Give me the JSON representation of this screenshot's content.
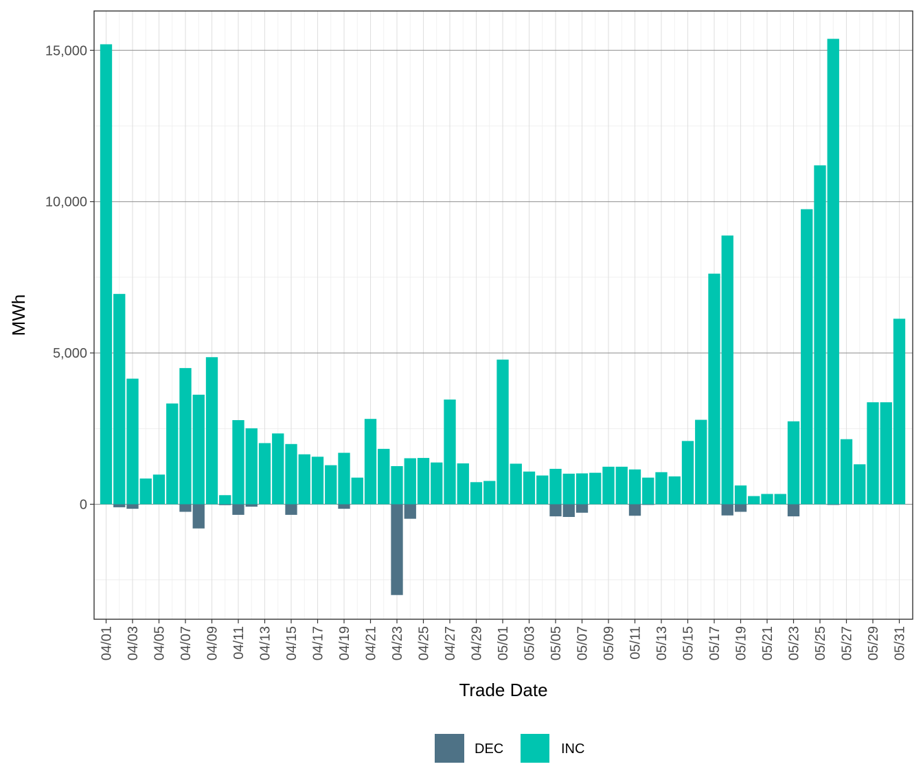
{
  "chart_data": {
    "type": "bar",
    "xlabel": "Trade Date",
    "ylabel": "MWh",
    "ylim": [
      -3800,
      16300
    ],
    "yticks": [
      0,
      5000,
      10000,
      15000
    ],
    "ytick_labels": [
      "0",
      "5,000",
      "10,000",
      "15,000"
    ],
    "grid": true,
    "legend_position": "bottom",
    "categories": [
      "04/01",
      "04/02",
      "04/03",
      "04/04",
      "04/05",
      "04/06",
      "04/07",
      "04/08",
      "04/09",
      "04/10",
      "04/11",
      "04/12",
      "04/13",
      "04/14",
      "04/15",
      "04/16",
      "04/17",
      "04/18",
      "04/19",
      "04/20",
      "04/21",
      "04/22",
      "04/23",
      "04/24",
      "04/25",
      "04/26",
      "04/27",
      "04/28",
      "04/29",
      "04/30",
      "05/01",
      "05/02",
      "05/03",
      "05/04",
      "05/05",
      "05/06",
      "05/07",
      "05/08",
      "05/09",
      "05/10",
      "05/11",
      "05/12",
      "05/13",
      "05/14",
      "05/15",
      "05/16",
      "05/17",
      "05/18",
      "05/19",
      "05/20",
      "05/21",
      "05/22",
      "05/23",
      "05/24",
      "05/25",
      "05/26",
      "05/27",
      "05/28",
      "05/29",
      "05/30",
      "05/31"
    ],
    "xtick_labels": [
      "04/01",
      "04/03",
      "04/05",
      "04/07",
      "04/09",
      "04/11",
      "04/13",
      "04/15",
      "04/17",
      "04/19",
      "04/21",
      "04/23",
      "04/25",
      "04/27",
      "04/29",
      "05/01",
      "05/03",
      "05/05",
      "05/07",
      "05/09",
      "05/11",
      "05/13",
      "05/15",
      "05/17",
      "05/19",
      "05/21",
      "05/23",
      "05/25",
      "05/27",
      "05/29",
      "05/31"
    ],
    "series": [
      {
        "name": "DEC",
        "color": "#4e7286",
        "values": [
          0,
          -100,
          -150,
          0,
          0,
          0,
          -250,
          -800,
          0,
          -30,
          -350,
          -80,
          0,
          0,
          -350,
          0,
          0,
          0,
          -150,
          0,
          0,
          0,
          -3000,
          -480,
          0,
          0,
          0,
          0,
          0,
          0,
          0,
          0,
          0,
          0,
          -400,
          -420,
          -280,
          0,
          0,
          0,
          -380,
          -20,
          0,
          0,
          0,
          0,
          0,
          -370,
          -250,
          0,
          0,
          0,
          -400,
          0,
          0,
          -20,
          0,
          0,
          0,
          0,
          0
        ]
      },
      {
        "name": "INC",
        "color": "#00c5b0",
        "values": [
          15200,
          6950,
          4150,
          850,
          980,
          3330,
          4500,
          3620,
          4860,
          300,
          2780,
          2510,
          2020,
          2340,
          1990,
          1650,
          1570,
          1290,
          1700,
          880,
          2820,
          1830,
          1260,
          1520,
          1530,
          1380,
          3460,
          1350,
          730,
          770,
          4780,
          1340,
          1080,
          950,
          1170,
          1010,
          1020,
          1040,
          1240,
          1240,
          1150,
          880,
          1060,
          920,
          2090,
          2790,
          7620,
          8880,
          620,
          270,
          340,
          340,
          2740,
          9750,
          11200,
          15380,
          2150,
          1320,
          3370,
          3370,
          6130
        ]
      }
    ]
  }
}
